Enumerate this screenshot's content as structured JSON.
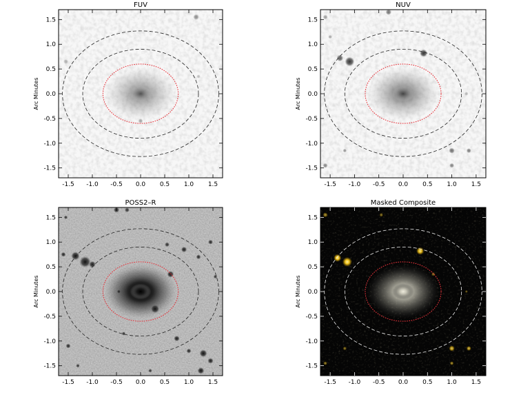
{
  "chart_data": [
    {
      "type": "image",
      "title": "FUV",
      "ylabel": "Arc Minutes",
      "xlabel": "",
      "xlim": [
        -1.7,
        1.7
      ],
      "ylim": [
        -1.7,
        1.7
      ],
      "ticks": [
        "-1.5",
        "-1.0",
        "-0.5",
        "0.0",
        "0.5",
        "1.0",
        "1.5"
      ],
      "theme": "light",
      "galaxy_intensity": 0.55,
      "sources": [
        {
          "x": 1.15,
          "y": 1.55,
          "r": 0.06,
          "i": 0.45
        },
        {
          "x": -1.55,
          "y": 0.65,
          "r": 0.05,
          "i": 0.3
        },
        {
          "x": 0.0,
          "y": -0.55,
          "r": 0.05,
          "i": 0.35
        },
        {
          "x": 1.2,
          "y": 0.35,
          "r": 0.04,
          "i": 0.25
        }
      ]
    },
    {
      "type": "image",
      "title": "NUV",
      "ylabel": "Arc Minutes",
      "xlabel": "",
      "xlim": [
        -1.7,
        1.7
      ],
      "ylim": [
        -1.7,
        1.7
      ],
      "ticks": [
        "-1.5",
        "-1.0",
        "-0.5",
        "0.0",
        "0.5",
        "1.0",
        "1.5"
      ],
      "theme": "light",
      "galaxy_intensity": 0.65,
      "sources": [
        {
          "x": -1.1,
          "y": 0.65,
          "r": 0.1,
          "i": 0.85
        },
        {
          "x": -1.3,
          "y": 0.72,
          "r": 0.07,
          "i": 0.7
        },
        {
          "x": 0.42,
          "y": 0.82,
          "r": 0.08,
          "i": 0.85
        },
        {
          "x": -0.3,
          "y": 1.65,
          "r": 0.06,
          "i": 0.6
        },
        {
          "x": -1.6,
          "y": 1.55,
          "r": 0.05,
          "i": 0.4
        },
        {
          "x": -1.6,
          "y": -1.45,
          "r": 0.05,
          "i": 0.5
        },
        {
          "x": -1.2,
          "y": -1.15,
          "r": 0.04,
          "i": 0.45
        },
        {
          "x": 1.0,
          "y": -1.15,
          "r": 0.06,
          "i": 0.6
        },
        {
          "x": 1.35,
          "y": -1.15,
          "r": 0.05,
          "i": 0.55
        },
        {
          "x": 1.0,
          "y": -1.45,
          "r": 0.05,
          "i": 0.5
        },
        {
          "x": 1.3,
          "y": 0.0,
          "r": 0.04,
          "i": 0.3
        },
        {
          "x": -1.5,
          "y": 1.15,
          "r": 0.04,
          "i": 0.35
        }
      ]
    },
    {
      "type": "image",
      "title": "POSS2–R",
      "ylabel": "Arc Minutes",
      "xlabel": "",
      "xlim": [
        -1.7,
        1.7
      ],
      "ylim": [
        -1.7,
        1.7
      ],
      "ticks": [
        "-1.5",
        "-1.0",
        "-0.5",
        "0.0",
        "0.5",
        "1.0",
        "1.5"
      ],
      "theme": "grey",
      "galaxy_intensity": 1.0,
      "sources": [
        {
          "x": -1.15,
          "y": 0.6,
          "r": 0.12,
          "i": 1.0
        },
        {
          "x": -1.35,
          "y": 0.72,
          "r": 0.09,
          "i": 1.0
        },
        {
          "x": -1.0,
          "y": 0.55,
          "r": 0.07,
          "i": 0.95
        },
        {
          "x": 0.62,
          "y": 0.35,
          "r": 0.07,
          "i": 1.0
        },
        {
          "x": 0.9,
          "y": 0.85,
          "r": 0.06,
          "i": 0.95
        },
        {
          "x": 1.2,
          "y": 0.7,
          "r": 0.05,
          "i": 0.9
        },
        {
          "x": 0.55,
          "y": 0.95,
          "r": 0.05,
          "i": 0.85
        },
        {
          "x": -0.5,
          "y": 1.65,
          "r": 0.06,
          "i": 0.9
        },
        {
          "x": -0.28,
          "y": 1.65,
          "r": 0.05,
          "i": 0.85
        },
        {
          "x": 1.45,
          "y": 1.0,
          "r": 0.05,
          "i": 0.9
        },
        {
          "x": -1.6,
          "y": 0.75,
          "r": 0.05,
          "i": 0.9
        },
        {
          "x": 0.3,
          "y": -0.35,
          "r": 0.09,
          "i": 1.0
        },
        {
          "x": 0.75,
          "y": -0.95,
          "r": 0.06,
          "i": 0.95
        },
        {
          "x": 1.0,
          "y": -1.2,
          "r": 0.05,
          "i": 0.9
        },
        {
          "x": 1.3,
          "y": -1.25,
          "r": 0.08,
          "i": 1.0
        },
        {
          "x": 1.45,
          "y": -1.4,
          "r": 0.06,
          "i": 0.95
        },
        {
          "x": 1.25,
          "y": -1.6,
          "r": 0.07,
          "i": 1.0
        },
        {
          "x": -1.5,
          "y": -1.1,
          "r": 0.05,
          "i": 0.9
        },
        {
          "x": -0.35,
          "y": -0.85,
          "r": 0.04,
          "i": 0.85
        },
        {
          "x": -0.45,
          "y": 0.0,
          "r": 0.04,
          "i": 0.85
        },
        {
          "x": 0.2,
          "y": -1.6,
          "r": 0.04,
          "i": 0.85
        },
        {
          "x": -1.3,
          "y": -1.5,
          "r": 0.04,
          "i": 0.85
        },
        {
          "x": -1.55,
          "y": 1.5,
          "r": 0.04,
          "i": 0.85
        },
        {
          "x": 1.55,
          "y": 0.3,
          "r": 0.04,
          "i": 0.85
        }
      ]
    },
    {
      "type": "image",
      "title": "Masked Composite",
      "ylabel": "Arc Minutes",
      "xlabel": "",
      "xlim": [
        -1.7,
        1.7
      ],
      "ylim": [
        -1.7,
        1.7
      ],
      "ticks": [
        "-1.5",
        "-1.0",
        "-0.5",
        "0.0",
        "0.5",
        "1.0",
        "1.5"
      ],
      "theme": "dark",
      "galaxy_intensity": 0.85,
      "sources": [
        {
          "x": -1.15,
          "y": 0.6,
          "r": 0.1,
          "i": 1.0
        },
        {
          "x": -1.35,
          "y": 0.68,
          "r": 0.08,
          "i": 1.0
        },
        {
          "x": 0.35,
          "y": 0.82,
          "r": 0.08,
          "i": 0.95
        },
        {
          "x": -1.6,
          "y": 1.55,
          "r": 0.05,
          "i": 0.6
        },
        {
          "x": -0.45,
          "y": 1.55,
          "r": 0.04,
          "i": 0.5
        },
        {
          "x": 1.0,
          "y": -1.15,
          "r": 0.06,
          "i": 0.8
        },
        {
          "x": 1.35,
          "y": -1.15,
          "r": 0.05,
          "i": 0.75
        },
        {
          "x": 1.0,
          "y": -1.45,
          "r": 0.04,
          "i": 0.6
        },
        {
          "x": -1.6,
          "y": -1.45,
          "r": 0.04,
          "i": 0.55
        },
        {
          "x": -1.2,
          "y": -1.15,
          "r": 0.04,
          "i": 0.5
        },
        {
          "x": 0.62,
          "y": 0.35,
          "r": 0.04,
          "i": 0.5
        },
        {
          "x": 1.3,
          "y": 0.0,
          "r": 0.03,
          "i": 0.4
        }
      ]
    }
  ],
  "ellipses": [
    {
      "name": "inner-aperture",
      "cx": 0.0,
      "cy": 0.0,
      "rx": 0.78,
      "ry": 0.6,
      "style": "red-dotted"
    },
    {
      "name": "middle-aperture",
      "cx": 0.0,
      "cy": 0.0,
      "rx": 1.2,
      "ry": 0.9,
      "style": "dashed"
    },
    {
      "name": "outer-aperture",
      "cx": 0.0,
      "cy": 0.0,
      "rx": 1.62,
      "ry": 1.27,
      "style": "dashed"
    }
  ],
  "colors": {
    "aperture_red": "#e8323a",
    "aperture_dark": "#222222",
    "aperture_light": "#f0f0f0",
    "composite_bg": "#050505",
    "composite_source": "#f5c518",
    "composite_galaxy": "#d9d7c8"
  }
}
